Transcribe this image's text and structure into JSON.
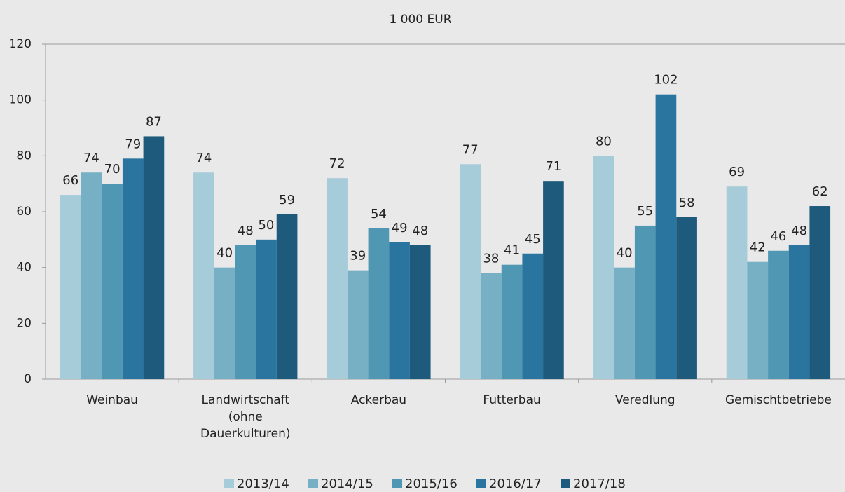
{
  "chart_data": {
    "type": "bar",
    "title": "1 000 EUR",
    "categories": [
      "Weinbau",
      "Landwirtschaft\n(ohne\nDauerkulturen)",
      "Ackerbau",
      "Futterbau",
      "Veredlung",
      "Gemischtbetriebe"
    ],
    "series": [
      {
        "name": "2013/14",
        "color": "#a6cbd9",
        "values": [
          66,
          74,
          72,
          77,
          80,
          69
        ]
      },
      {
        "name": "2014/15",
        "color": "#77afc4",
        "values": [
          74,
          40,
          39,
          38,
          40,
          42
        ]
      },
      {
        "name": "2015/16",
        "color": "#4f97b3",
        "values": [
          70,
          48,
          54,
          41,
          55,
          46
        ]
      },
      {
        "name": "2016/17",
        "color": "#2a74a0",
        "values": [
          79,
          50,
          49,
          45,
          102,
          48
        ]
      },
      {
        "name": "2017/18",
        "color": "#1d5a7b",
        "values": [
          87,
          59,
          48,
          71,
          58,
          62
        ]
      }
    ],
    "ylim": [
      0,
      120
    ],
    "yticks": [
      0,
      20,
      40,
      60,
      80,
      100,
      120
    ],
    "grid": false
  }
}
